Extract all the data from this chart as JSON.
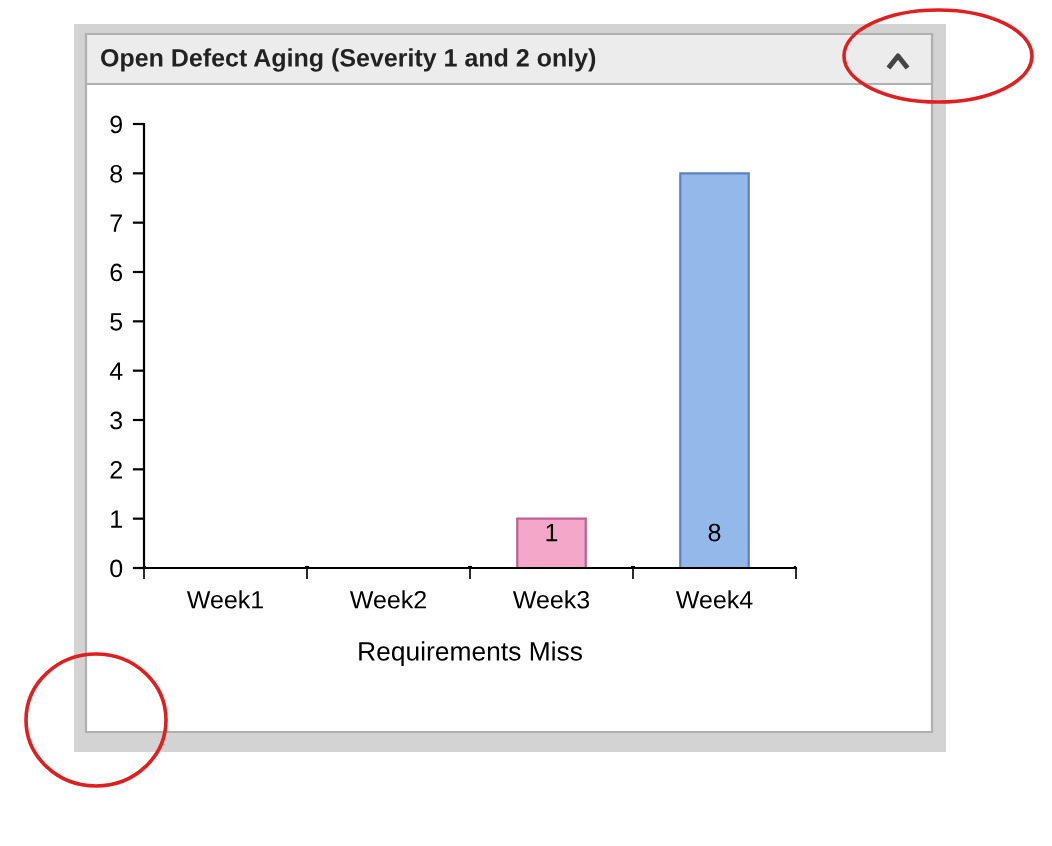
{
  "chart_data": {
    "type": "bar",
    "title": "Open Defect Aging (Severity 1 and 2 only)",
    "xlabel": "Requirements Miss",
    "categories": [
      "Week1",
      "Week2",
      "Week3",
      "Week4"
    ],
    "values": [
      0,
      0,
      1,
      8
    ],
    "colors": [
      null,
      null,
      "#f4a7c8",
      "#95b8ea"
    ],
    "value_labels": [
      null,
      null,
      "1",
      "8"
    ],
    "ylim": [
      0,
      9
    ],
    "yticks": [
      0,
      1,
      2,
      3,
      4,
      5,
      6,
      7,
      8,
      9
    ],
    "grid": false,
    "legend": false
  }
}
